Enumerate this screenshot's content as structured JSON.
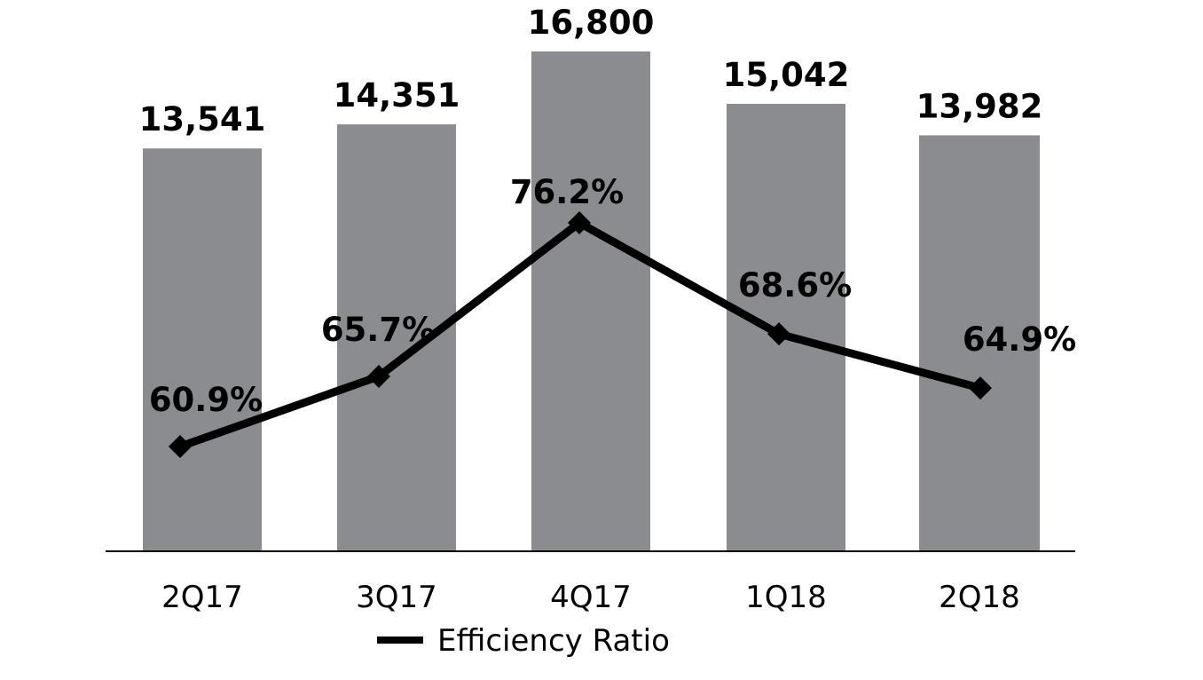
{
  "chart_data": {
    "type": "bar",
    "categories": [
      "2Q17",
      "3Q17",
      "4Q17",
      "1Q18",
      "2Q18"
    ],
    "series": [
      {
        "type": "bar",
        "values": [
          13541,
          14351,
          16800,
          15042,
          13982
        ],
        "labels": [
          "13,541",
          "14,351",
          "16,800",
          "15,042",
          "13,982"
        ],
        "color": "#8a8c90"
      },
      {
        "name": "Efficiency Ratio",
        "type": "line",
        "values": [
          60.9,
          65.7,
          76.2,
          68.6,
          64.9
        ],
        "labels": [
          "60.9%",
          "65.7%",
          "76.2%",
          "68.6%",
          "64.9%"
        ],
        "color": "#000000",
        "marker": "diamond"
      }
    ],
    "legend": {
      "position": "bottom",
      "entries": [
        "Efficiency Ratio"
      ]
    },
    "grid": false,
    "ylim": [
      0,
      16800
    ],
    "y2lim": [
      50,
      80
    ]
  }
}
